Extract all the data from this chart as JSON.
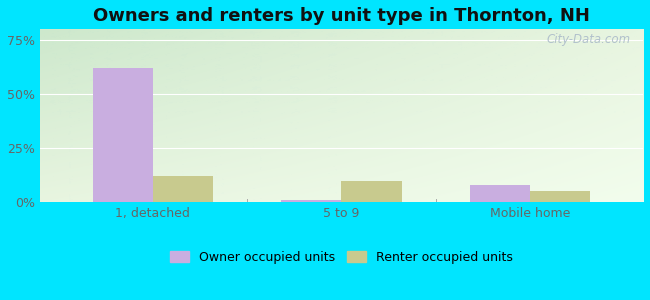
{
  "title": "Owners and renters by unit type in Thornton, NH",
  "categories": [
    "1, detached",
    "5 to 9",
    "Mobile home"
  ],
  "owner_values": [
    62,
    1,
    8
  ],
  "renter_values": [
    12,
    10,
    5
  ],
  "owner_color": "#c9aee0",
  "renter_color": "#c8ca8e",
  "yticks": [
    0,
    25,
    50,
    75
  ],
  "ytick_labels": [
    "0%",
    "25%",
    "50%",
    "75%"
  ],
  "ylim": [
    0,
    80
  ],
  "grad_top_left": "#cde8cc",
  "grad_bottom_right": "#f2fded",
  "outer_bg": "#00e5ff",
  "bar_width": 0.32,
  "watermark": "City-Data.com",
  "legend_owner": "Owner occupied units",
  "legend_renter": "Renter occupied units",
  "title_fontsize": 13,
  "tick_fontsize": 9,
  "legend_fontsize": 9
}
